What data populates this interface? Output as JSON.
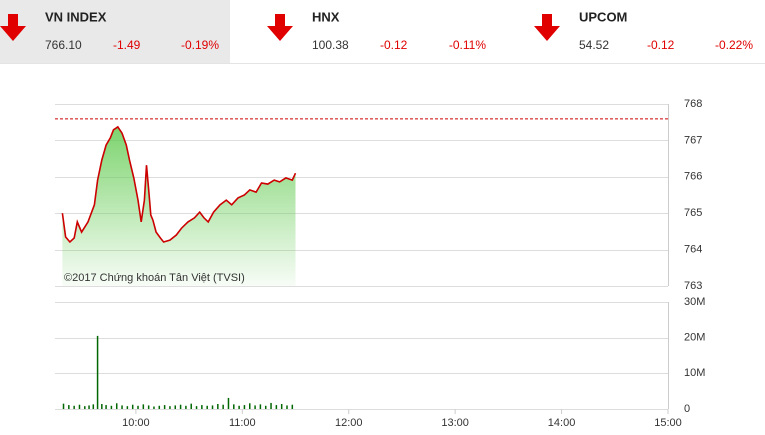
{
  "tickers": [
    {
      "name": "VN INDEX",
      "value": "766.10",
      "change": "-1.49",
      "percent": "-0.19%"
    },
    {
      "name": "HNX",
      "value": "100.38",
      "change": "-0.12",
      "percent": "-0.11%"
    },
    {
      "name": "UPCOM",
      "value": "54.52",
      "change": "-0.12",
      "percent": "-0.22%"
    }
  ],
  "chart_data": [
    {
      "type": "line",
      "annotation": "©2017 Chứng khoán Tân Việt (TVSI)",
      "series": [
        {
          "color": "#cc0000",
          "x": [
            9.31,
            9.34,
            9.38,
            9.42,
            9.45,
            9.49,
            9.55,
            9.61,
            9.64,
            9.68,
            9.72,
            9.76,
            9.79,
            9.83,
            9.87,
            9.91,
            9.94,
            9.98,
            10.02,
            10.05,
            10.08,
            10.1,
            10.12,
            10.14,
            10.16,
            10.19,
            10.23,
            10.26,
            10.32,
            10.38,
            10.43,
            10.49,
            10.55,
            10.6,
            10.64,
            10.68,
            10.73,
            10.79,
            10.85,
            10.9,
            10.96,
            11.02,
            11.07,
            11.13,
            11.18,
            11.24,
            11.3,
            11.35,
            11.41,
            11.47,
            11.5
          ],
          "values": [
            765.0,
            764.35,
            764.21,
            764.32,
            764.76,
            764.48,
            764.76,
            765.23,
            765.91,
            766.46,
            766.87,
            767.07,
            767.29,
            767.37,
            767.2,
            766.87,
            766.46,
            765.97,
            765.36,
            764.76,
            765.36,
            766.32,
            765.64,
            764.95,
            764.81,
            764.48,
            764.32,
            764.21,
            764.26,
            764.4,
            764.59,
            764.76,
            764.87,
            765.03,
            764.87,
            764.76,
            765.03,
            765.23,
            765.36,
            765.23,
            765.42,
            765.5,
            765.64,
            765.58,
            765.83,
            765.8,
            765.91,
            765.86,
            765.97,
            765.91,
            766.1
          ]
        }
      ],
      "reference_value": 767.59,
      "reference_color": "#cc0000",
      "xlim": [
        9.24,
        15
      ],
      "ylim": [
        763,
        768
      ],
      "yticks": [
        763,
        764,
        765,
        766,
        767,
        768
      ],
      "grid": true
    },
    {
      "type": "bar",
      "series": [
        {
          "color": "#006600",
          "x": [
            9.32,
            9.37,
            9.42,
            9.47,
            9.52,
            9.56,
            9.6,
            9.64,
            9.68,
            9.72,
            9.77,
            9.82,
            9.87,
            9.92,
            9.97,
            10.02,
            10.07,
            10.12,
            10.17,
            10.22,
            10.27,
            10.32,
            10.37,
            10.42,
            10.47,
            10.52,
            10.57,
            10.62,
            10.67,
            10.72,
            10.77,
            10.82,
            10.87,
            10.92,
            10.97,
            11.02,
            11.07,
            11.12,
            11.17,
            11.22,
            11.27,
            11.32,
            11.37,
            11.42,
            11.47
          ],
          "values": [
            1500000,
            1100000,
            900000,
            1200000,
            800000,
            1000000,
            1300000,
            20500000,
            1400000,
            1100000,
            900000,
            1600000,
            1000000,
            800000,
            1200000,
            900000,
            1300000,
            1000000,
            700000,
            900000,
            1100000,
            800000,
            1000000,
            1200000,
            900000,
            1500000,
            800000,
            1100000,
            900000,
            1000000,
            1400000,
            1200000,
            3100000,
            1300000,
            900000,
            1100000,
            1600000,
            1000000,
            1300000,
            900000,
            1700000,
            1100000,
            1400000,
            1000000,
            1200000
          ]
        }
      ],
      "xlim": [
        9.24,
        15
      ],
      "xticks": [
        {
          "value": 10,
          "label": "10:00"
        },
        {
          "value": 11,
          "label": "11:00"
        },
        {
          "value": 12,
          "label": "12:00"
        },
        {
          "value": 13,
          "label": "13:00"
        },
        {
          "value": 14,
          "label": "14:00"
        },
        {
          "value": 15,
          "label": "15:00"
        }
      ],
      "ylim": [
        0,
        30000000
      ],
      "yticks": [
        0,
        {
          "value": 10000000,
          "label": "10M"
        },
        {
          "value": 20000000,
          "label": "20M"
        },
        {
          "value": 30000000,
          "label": "30M"
        }
      ],
      "grid": true
    }
  ]
}
